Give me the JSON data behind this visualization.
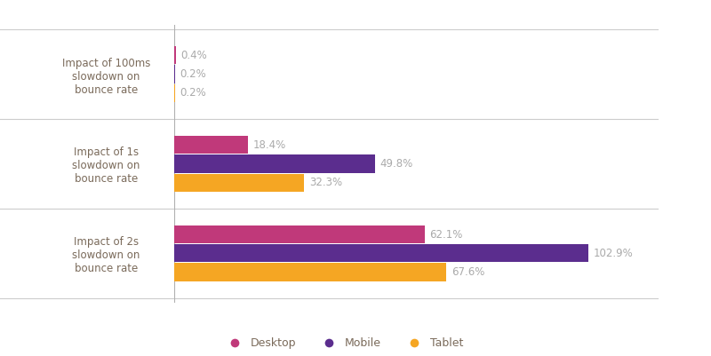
{
  "categories": [
    "Impact of 100ms\nslowdown on\nbounce rate",
    "Impact of 1s\nslowdown on\nbounce rate",
    "Impact of 2s\nslowdown on\nbounce rate"
  ],
  "series": {
    "Desktop": [
      0.4,
      18.4,
      62.1
    ],
    "Mobile": [
      0.2,
      49.8,
      102.9
    ],
    "Tablet": [
      0.2,
      32.3,
      67.6
    ]
  },
  "colors": {
    "Desktop": "#c0397a",
    "Mobile": "#5b2d8e",
    "Tablet": "#f5a623"
  },
  "bar_height": 0.2,
  "label_fontsize": 8.5,
  "ylabel_fontsize": 8.5,
  "legend_fontsize": 9,
  "background_color": "#ffffff",
  "axes_color": "#cccccc",
  "text_color": "#7a6a5a",
  "value_label_color": "#aaaaaa",
  "xlim": [
    0,
    120
  ]
}
